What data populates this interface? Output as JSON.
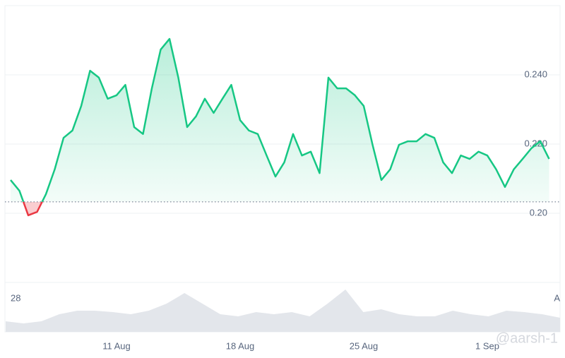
{
  "chart_data": {
    "type": "line",
    "categories": [
      null,
      null,
      null,
      null,
      null,
      null,
      null,
      null,
      null,
      null,
      null,
      null,
      "11 Aug",
      null,
      null,
      null,
      null,
      null,
      null,
      null,
      null,
      null,
      null,
      null,
      null,
      null,
      "18 Aug",
      null,
      null,
      null,
      null,
      null,
      null,
      null,
      null,
      null,
      null,
      null,
      null,
      null,
      "25 Aug",
      null,
      null,
      null,
      null,
      null,
      null,
      null,
      null,
      null,
      null,
      null,
      null,
      null,
      "1 Sep",
      null,
      null,
      null,
      null,
      null,
      null,
      null
    ],
    "values": [
      0.2096,
      0.2065,
      0.1994,
      0.2004,
      0.2055,
      0.2127,
      0.2218,
      0.2239,
      0.231,
      0.2412,
      0.2392,
      0.2331,
      0.2341,
      0.2371,
      0.2249,
      0.2229,
      0.2361,
      0.2473,
      0.2504,
      0.2392,
      0.2249,
      0.228,
      0.2331,
      0.229,
      0.2331,
      0.2371,
      0.2269,
      0.2239,
      0.2229,
      0.2167,
      0.2106,
      0.2147,
      0.2229,
      0.2167,
      0.2178,
      0.2116,
      0.2392,
      0.2361,
      0.2361,
      0.2341,
      0.231,
      0.2198,
      0.2096,
      0.2127,
      0.2198,
      0.2208,
      0.2208,
      0.2229,
      0.2218,
      0.2147,
      0.2116,
      0.2167,
      0.2157,
      0.2178,
      0.2167,
      0.2127,
      0.2076,
      0.2127,
      0.2157,
      0.2188,
      0.2208,
      0.2157
    ],
    "color_up": "#16c784",
    "color_down": "#ea3943",
    "baseline": 0.2033,
    "ylim": [
      0.18,
      0.26
    ],
    "yticks": [
      {
        "value": 0.24,
        "label": "0.240"
      },
      {
        "value": 0.22,
        "label": "0.220"
      },
      {
        "value": 0.2,
        "label": "0.20"
      }
    ],
    "grid": true,
    "volume": {
      "values": [
        15,
        12,
        15,
        25,
        30,
        30,
        28,
        25,
        30,
        40,
        55,
        40,
        25,
        22,
        28,
        25,
        28,
        22,
        40,
        60,
        28,
        32,
        25,
        22,
        22,
        30,
        25,
        22,
        30,
        28,
        25,
        20
      ],
      "ylim": [
        0,
        70
      ],
      "color": "#e3e6eb"
    },
    "range_labels": [
      "28",
      "A"
    ],
    "watermark": "@aarsh-1"
  }
}
